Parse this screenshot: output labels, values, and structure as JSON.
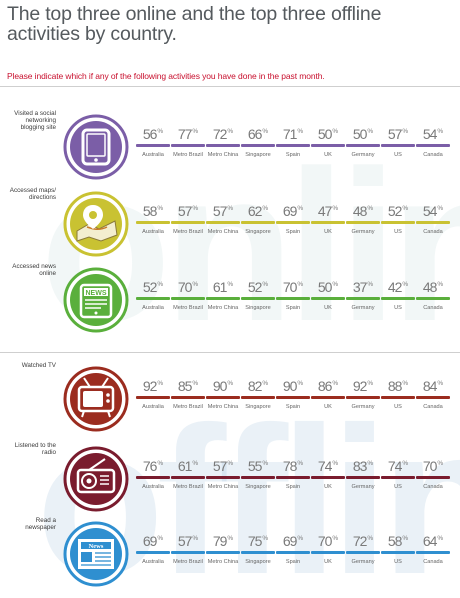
{
  "title": "The top three online and the top three offline activities by country.",
  "subtitle": "Please indicate which if any of the following activities you have done in the past month.",
  "watermark": {
    "online": "online",
    "offline": "offline"
  },
  "countries": [
    "Australia",
    "Metro Brazil",
    "Metro China",
    "Singapore",
    "Spain",
    "UK",
    "Germany",
    "US",
    "Canada"
  ],
  "activities": [
    {
      "label": "Visited a social networking blogging site",
      "color": "#7b5ea7",
      "icon": "tablet-icon"
    },
    {
      "label": "Accessed maps/ directions",
      "color": "#c9c232",
      "icon": "map-pin-icon"
    },
    {
      "label": "Accessed news online",
      "color": "#5aaf3c",
      "icon": "news-tablet-icon",
      "icon_text": "NEWS"
    },
    {
      "label": "Watched TV",
      "color": "#9b2c1f",
      "icon": "tv-icon"
    },
    {
      "label": "Listened to the radio",
      "color": "#7a1c2e",
      "icon": "radio-icon"
    },
    {
      "label": "Read a newspaper",
      "color": "#2f8fd0",
      "icon": "newspaper-icon",
      "icon_text": "News"
    }
  ],
  "chart_data": {
    "type": "table",
    "title": "The top three online and the top three offline activities by country.",
    "subtitle": "Please indicate which if any of the following activities you have done in the past month.",
    "categories": [
      "Australia",
      "Metro Brazil",
      "Metro China",
      "Singapore",
      "Spain",
      "UK",
      "Germany",
      "US",
      "Canada"
    ],
    "unit": "%",
    "series": [
      {
        "name": "Visited a social networking blogging site",
        "group": "online",
        "values": [
          56,
          77,
          72,
          66,
          71,
          50,
          50,
          57,
          54
        ]
      },
      {
        "name": "Accessed maps/ directions",
        "group": "online",
        "values": [
          58,
          57,
          57,
          62,
          69,
          47,
          48,
          52,
          54
        ]
      },
      {
        "name": "Accessed news online",
        "group": "online",
        "values": [
          52,
          70,
          61,
          52,
          70,
          50,
          37,
          42,
          48
        ]
      },
      {
        "name": "Watched TV",
        "group": "offline",
        "values": [
          92,
          85,
          90,
          82,
          90,
          86,
          92,
          88,
          84
        ]
      },
      {
        "name": "Listened to the radio",
        "group": "offline",
        "values": [
          76,
          61,
          57,
          55,
          78,
          74,
          83,
          74,
          70
        ]
      },
      {
        "name": "Read a newspaper",
        "group": "offline",
        "values": [
          69,
          57,
          79,
          75,
          69,
          70,
          72,
          58,
          64
        ]
      }
    ]
  }
}
